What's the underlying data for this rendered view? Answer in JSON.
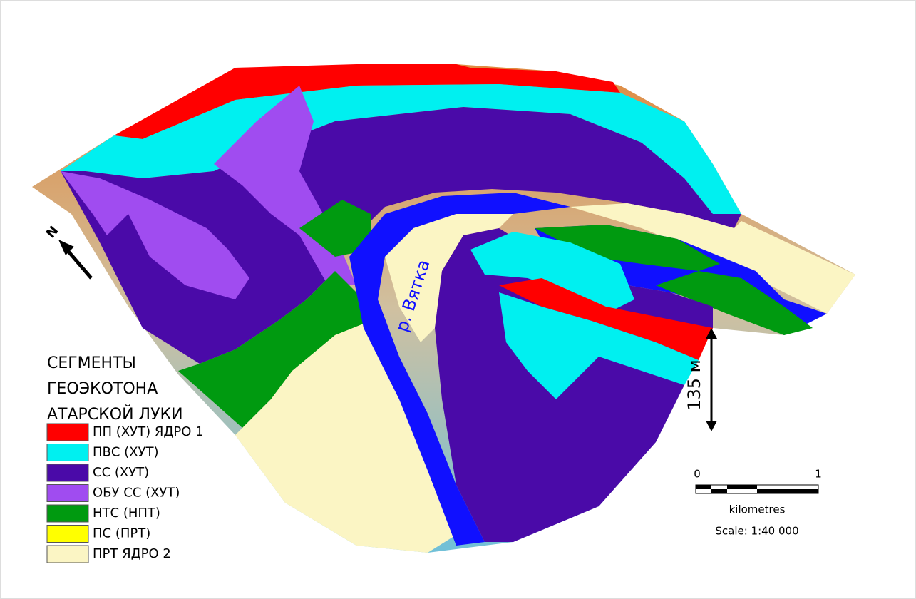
{
  "legend": {
    "title": [
      "СЕГМЕНТЫ",
      "ГЕОЭКОТОНА",
      "АТАРСКОЙ ЛУКИ"
    ],
    "items": [
      {
        "label": "ПП (ХУТ) ЯДРО 1",
        "color": "#ff0000"
      },
      {
        "label": "ПВС (ХУТ)",
        "color": "#00f0f0"
      },
      {
        "label": "СС (ХУТ)",
        "color": "#4a0aa8"
      },
      {
        "label": "ОБУ СС (ХУТ)",
        "color": "#a04cf0"
      },
      {
        "label": "НТС (НПТ)",
        "color": "#009a10"
      },
      {
        "label": "ПС (ПРТ)",
        "color": "#ffff00"
      },
      {
        "label": "ПРТ ЯДРО 2",
        "color": "#fbf5c4"
      }
    ]
  },
  "river_label": "р. Вятка",
  "north": "N",
  "height_label": "135 м",
  "scale": {
    "start": "0",
    "end": "1",
    "unit": "kilometres",
    "text": "Scale: 1:40 000"
  }
}
